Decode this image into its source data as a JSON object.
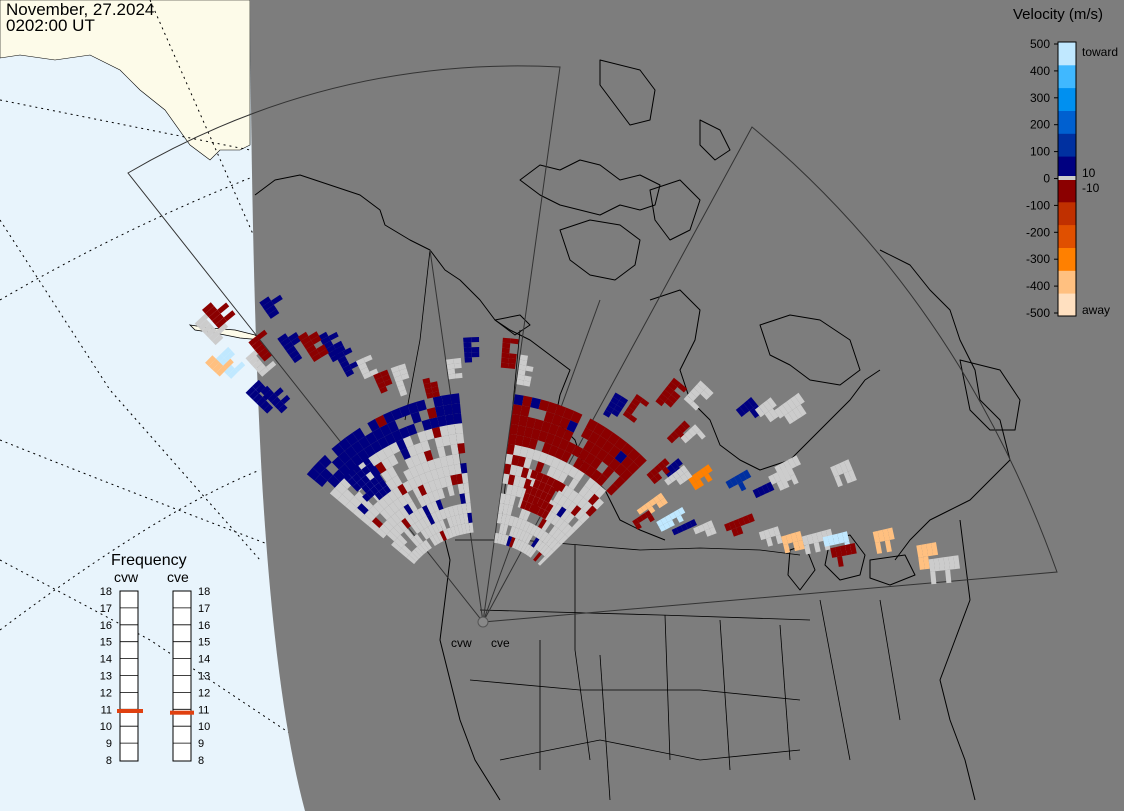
{
  "header": {
    "date": "November, 27.2024",
    "time": "0202:00 UT"
  },
  "colors": {
    "ocean_day": "#e8f4fc",
    "land_day": "#fdfbe9",
    "night": "#7d7d7d",
    "ground_scatter": "#cccccc",
    "velocity_colors": [
      "#ffe0c0",
      "#ffc080",
      "#ff8000",
      "#e05000",
      "#c03000",
      "#8b0000",
      "#000080",
      "#0030a0",
      "#0060d0",
      "#0090f0",
      "#40b8ff",
      "#c0e8ff"
    ]
  },
  "legend": {
    "title": "Velocity (m/s)",
    "ticks": [
      "500",
      "400",
      "300",
      "200",
      "100",
      "0",
      "-100",
      "-200",
      "-300",
      "-400",
      "-500"
    ],
    "low_label_pos": "10",
    "low_label_neg": "-10",
    "toward": "toward",
    "away": "away"
  },
  "frequency": {
    "title": "Frequency",
    "radars": [
      {
        "name": "cvw",
        "value_mhz": 10.9
      },
      {
        "name": "cve",
        "value_mhz": 10.8
      }
    ],
    "ticks": [
      "18",
      "17",
      "16",
      "15",
      "14",
      "13",
      "12",
      "11",
      "10",
      "9",
      "8"
    ],
    "indicator_color": "#e04010"
  },
  "stations": [
    {
      "name": "cvw"
    },
    {
      "name": "cve"
    }
  ]
}
